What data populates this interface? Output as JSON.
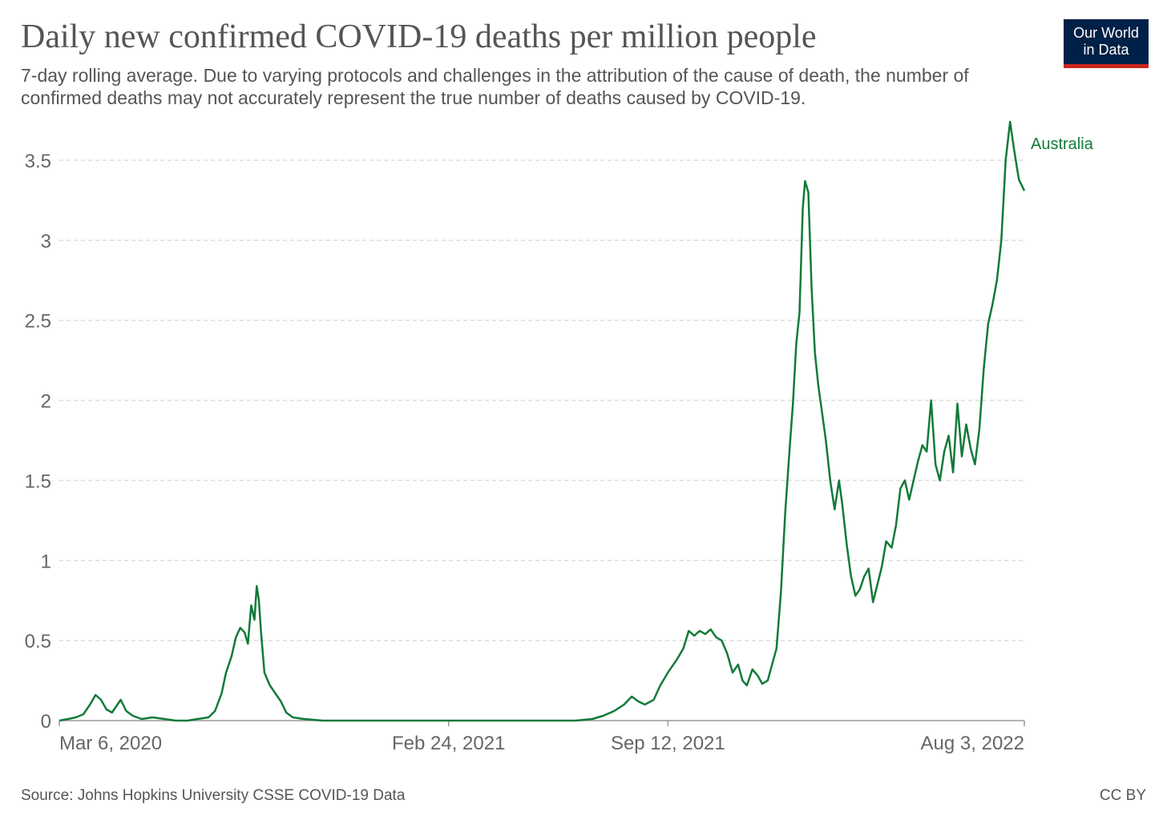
{
  "title": "Daily new confirmed COVID-19 deaths per million people",
  "subtitle": "7-day rolling average. Due to varying protocols and challenges in the attribution of the cause of death, the number of confirmed deaths may not accurately represent the true number of deaths caused by COVID-19.",
  "logo": {
    "line1": "Our World",
    "line2": "in Data",
    "bg_color": "#002147",
    "accent_color": "#ce261e"
  },
  "source": "Source: Johns Hopkins University CSSE COVID-19 Data",
  "license": "CC BY",
  "chart_data": {
    "type": "line",
    "xlabel": "",
    "ylabel": "",
    "x_start": "2020-03-06",
    "x_end": "2022-08-03",
    "x_ticks": [
      {
        "date": "2020-03-06",
        "label": "Mar 6, 2020"
      },
      {
        "date": "2021-02-24",
        "label": "Feb 24, 2021"
      },
      {
        "date": "2021-09-12",
        "label": "Sep 12, 2021"
      },
      {
        "date": "2022-08-03",
        "label": "Aug 3, 2022"
      }
    ],
    "y_ticks": [
      0,
      0.5,
      1,
      1.5,
      2,
      2.5,
      3,
      3.5
    ],
    "y_tick_labels": [
      "0",
      "0.5",
      "1",
      "1.5",
      "2",
      "2.5",
      "3",
      "3.5"
    ],
    "ylim": [
      0,
      3.75
    ],
    "grid": true,
    "line_color": "#127a3a",
    "series": [
      {
        "name": "Australia",
        "points": [
          [
            "2020-03-06",
            0
          ],
          [
            "2020-03-14",
            0.01
          ],
          [
            "2020-03-21",
            0.02
          ],
          [
            "2020-03-28",
            0.04
          ],
          [
            "2020-04-03",
            0.1
          ],
          [
            "2020-04-08",
            0.16
          ],
          [
            "2020-04-13",
            0.13
          ],
          [
            "2020-04-18",
            0.07
          ],
          [
            "2020-04-23",
            0.05
          ],
          [
            "2020-04-28",
            0.1
          ],
          [
            "2020-05-01",
            0.13
          ],
          [
            "2020-05-06",
            0.06
          ],
          [
            "2020-05-12",
            0.03
          ],
          [
            "2020-05-20",
            0.01
          ],
          [
            "2020-05-30",
            0.02
          ],
          [
            "2020-06-10",
            0.01
          ],
          [
            "2020-06-20",
            0
          ],
          [
            "2020-07-01",
            0
          ],
          [
            "2020-07-10",
            0.01
          ],
          [
            "2020-07-20",
            0.02
          ],
          [
            "2020-07-26",
            0.06
          ],
          [
            "2020-08-01",
            0.17
          ],
          [
            "2020-08-05",
            0.3
          ],
          [
            "2020-08-10",
            0.4
          ],
          [
            "2020-08-14",
            0.52
          ],
          [
            "2020-08-18",
            0.58
          ],
          [
            "2020-08-22",
            0.55
          ],
          [
            "2020-08-25",
            0.48
          ],
          [
            "2020-08-28",
            0.72
          ],
          [
            "2020-08-31",
            0.63
          ],
          [
            "2020-09-02",
            0.84
          ],
          [
            "2020-09-04",
            0.75
          ],
          [
            "2020-09-06",
            0.55
          ],
          [
            "2020-09-09",
            0.3
          ],
          [
            "2020-09-14",
            0.22
          ],
          [
            "2020-09-19",
            0.17
          ],
          [
            "2020-09-24",
            0.12
          ],
          [
            "2020-09-29",
            0.05
          ],
          [
            "2020-10-05",
            0.02
          ],
          [
            "2020-10-15",
            0.01
          ],
          [
            "2020-11-01",
            0
          ],
          [
            "2020-12-01",
            0
          ],
          [
            "2021-01-15",
            0
          ],
          [
            "2021-02-24",
            0
          ],
          [
            "2021-03-20",
            0
          ],
          [
            "2021-04-25",
            0
          ],
          [
            "2021-06-01",
            0
          ],
          [
            "2021-06-20",
            0
          ],
          [
            "2021-07-05",
            0.01
          ],
          [
            "2021-07-15",
            0.03
          ],
          [
            "2021-07-25",
            0.06
          ],
          [
            "2021-08-03",
            0.1
          ],
          [
            "2021-08-10",
            0.15
          ],
          [
            "2021-08-16",
            0.12
          ],
          [
            "2021-08-22",
            0.1
          ],
          [
            "2021-08-30",
            0.13
          ],
          [
            "2021-09-05",
            0.22
          ],
          [
            "2021-09-12",
            0.3
          ],
          [
            "2021-09-20",
            0.38
          ],
          [
            "2021-09-26",
            0.45
          ],
          [
            "2021-10-01",
            0.56
          ],
          [
            "2021-10-06",
            0.53
          ],
          [
            "2021-10-11",
            0.56
          ],
          [
            "2021-10-16",
            0.54
          ],
          [
            "2021-10-21",
            0.57
          ],
          [
            "2021-10-26",
            0.52
          ],
          [
            "2021-10-31",
            0.5
          ],
          [
            "2021-11-05",
            0.42
          ],
          [
            "2021-11-10",
            0.3
          ],
          [
            "2021-11-15",
            0.35
          ],
          [
            "2021-11-19",
            0.25
          ],
          [
            "2021-11-23",
            0.22
          ],
          [
            "2021-11-28",
            0.32
          ],
          [
            "2021-12-03",
            0.28
          ],
          [
            "2021-12-07",
            0.23
          ],
          [
            "2021-12-12",
            0.25
          ],
          [
            "2021-12-16",
            0.35
          ],
          [
            "2021-12-20",
            0.45
          ],
          [
            "2021-12-24",
            0.8
          ],
          [
            "2021-12-28",
            1.3
          ],
          [
            "2022-01-01",
            1.7
          ],
          [
            "2022-01-04",
            1.98
          ],
          [
            "2022-01-07",
            2.35
          ],
          [
            "2022-01-10",
            2.55
          ],
          [
            "2022-01-13",
            3.2
          ],
          [
            "2022-01-15",
            3.37
          ],
          [
            "2022-01-18",
            3.3
          ],
          [
            "2022-01-21",
            2.7
          ],
          [
            "2022-01-24",
            2.3
          ],
          [
            "2022-01-27",
            2.1
          ],
          [
            "2022-01-30",
            1.95
          ],
          [
            "2022-02-03",
            1.75
          ],
          [
            "2022-02-07",
            1.5
          ],
          [
            "2022-02-11",
            1.32
          ],
          [
            "2022-02-15",
            1.5
          ],
          [
            "2022-02-18",
            1.35
          ],
          [
            "2022-02-22",
            1.1
          ],
          [
            "2022-02-26",
            0.9
          ],
          [
            "2022-03-02",
            0.78
          ],
          [
            "2022-03-06",
            0.82
          ],
          [
            "2022-03-10",
            0.9
          ],
          [
            "2022-03-14",
            0.95
          ],
          [
            "2022-03-18",
            0.74
          ],
          [
            "2022-03-22",
            0.85
          ],
          [
            "2022-03-26",
            0.96
          ],
          [
            "2022-03-30",
            1.12
          ],
          [
            "2022-04-04",
            1.08
          ],
          [
            "2022-04-08",
            1.22
          ],
          [
            "2022-04-12",
            1.45
          ],
          [
            "2022-04-16",
            1.5
          ],
          [
            "2022-04-20",
            1.38
          ],
          [
            "2022-04-24",
            1.5
          ],
          [
            "2022-04-28",
            1.62
          ],
          [
            "2022-05-02",
            1.72
          ],
          [
            "2022-05-06",
            1.68
          ],
          [
            "2022-05-10",
            2.0
          ],
          [
            "2022-05-14",
            1.6
          ],
          [
            "2022-05-18",
            1.5
          ],
          [
            "2022-05-22",
            1.68
          ],
          [
            "2022-05-26",
            1.78
          ],
          [
            "2022-05-30",
            1.55
          ],
          [
            "2022-06-03",
            1.98
          ],
          [
            "2022-06-07",
            1.65
          ],
          [
            "2022-06-11",
            1.85
          ],
          [
            "2022-06-15",
            1.7
          ],
          [
            "2022-06-19",
            1.6
          ],
          [
            "2022-06-23",
            1.82
          ],
          [
            "2022-06-27",
            2.2
          ],
          [
            "2022-07-01",
            2.48
          ],
          [
            "2022-07-05",
            2.6
          ],
          [
            "2022-07-09",
            2.75
          ],
          [
            "2022-07-13",
            3.0
          ],
          [
            "2022-07-17",
            3.5
          ],
          [
            "2022-07-21",
            3.74
          ],
          [
            "2022-07-25",
            3.55
          ],
          [
            "2022-07-29",
            3.38
          ],
          [
            "2022-08-03",
            3.31
          ]
        ]
      }
    ]
  }
}
